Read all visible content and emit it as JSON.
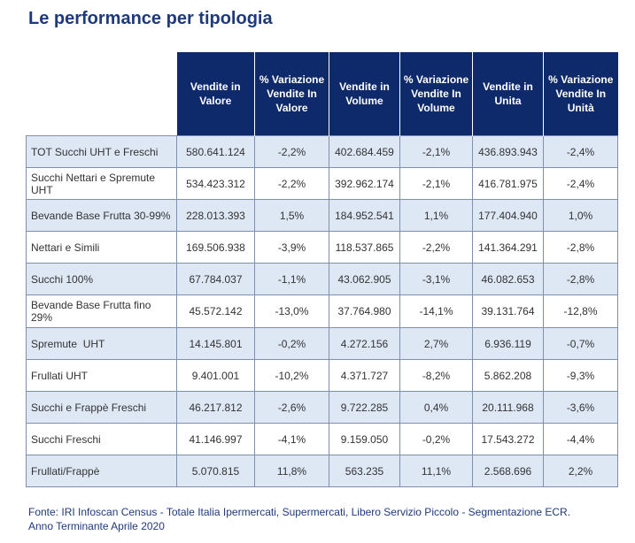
{
  "title": "Le performance per tipologia",
  "header": {
    "col1": "Vendite in Valore",
    "col2": "% Variazione Vendite In Valore",
    "col3": "Vendite in Volume",
    "col4": "% Variazione Vendite In Volume",
    "col5": "Vendite in Unita",
    "col6": "% Variazione Vendite In Unità"
  },
  "rows": [
    {
      "name": "TOT Succhi UHT e Freschi",
      "valore": "580.641.124",
      "var_valore": "-2,2%",
      "volume": "402.684.459",
      "var_volume": "-2,1%",
      "unita": "436.893.943",
      "var_unita": "-2,4%"
    },
    {
      "name": "Succhi Nettari e Spremute UHT",
      "valore": "534.423.312",
      "var_valore": "-2,2%",
      "volume": "392.962.174",
      "var_volume": "-2,1%",
      "unita": "416.781.975",
      "var_unita": "-2,4%"
    },
    {
      "name": "Bevande Base Frutta 30-99%",
      "valore": "228.013.393",
      "var_valore": "1,5%",
      "volume": "184.952.541",
      "var_volume": "1,1%",
      "unita": "177.404.940",
      "var_unita": "1,0%"
    },
    {
      "name": "Nettari e Simili",
      "valore": "169.506.938",
      "var_valore": "-3,9%",
      "volume": "118.537.865",
      "var_volume": "-2,2%",
      "unita": "141.364.291",
      "var_unita": "-2,8%"
    },
    {
      "name": "Succhi 100%",
      "valore": "67.784.037",
      "var_valore": "-1,1%",
      "volume": "43.062.905",
      "var_volume": "-3,1%",
      "unita": "46.082.653",
      "var_unita": "-2,8%"
    },
    {
      "name": "Bevande Base Frutta fino 29%",
      "valore": "45.572.142",
      "var_valore": "-13,0%",
      "volume": "37.764.980",
      "var_volume": "-14,1%",
      "unita": "39.131.764",
      "var_unita": "-12,8%"
    },
    {
      "name": "Spremute  UHT",
      "valore": "14.145.801",
      "var_valore": "-0,2%",
      "volume": "4.272.156",
      "var_volume": "2,7%",
      "unita": "6.936.119",
      "var_unita": "-0,7%"
    },
    {
      "name": "Frullati UHT",
      "valore": "9.401.001",
      "var_valore": "-10,2%",
      "volume": "4.371.727",
      "var_volume": "-8,2%",
      "unita": "5.862.208",
      "var_unita": "-9,3%"
    },
    {
      "name": "Succhi e Frappè Freschi",
      "valore": "46.217.812",
      "var_valore": "-2,6%",
      "volume": "9.722.285",
      "var_volume": "0,4%",
      "unita": "20.111.968",
      "var_unita": "-3,6%"
    },
    {
      "name": "Succhi Freschi",
      "valore": "41.146.997",
      "var_valore": "-4,1%",
      "volume": "9.159.050",
      "var_volume": "-0,2%",
      "unita": "17.543.272",
      "var_unita": "-4,4%"
    },
    {
      "name": "Frullati/Frappè",
      "valore": "5.070.815",
      "var_valore": "11,8%",
      "volume": "563.235",
      "var_volume": "11,1%",
      "unita": "2.568.696",
      "var_unita": "2,2%"
    }
  ],
  "source": "Fonte: IRI Infoscan Census - Totale Italia Ipermercati, Supermercati, Libero Servizio Piccolo - Segmentazione ECR. Anno Terminante Aprile 2020",
  "colors": {
    "header_bg": "#0f2a6b",
    "title": "#1f3a7a",
    "alt_row": "#dde8f4"
  }
}
